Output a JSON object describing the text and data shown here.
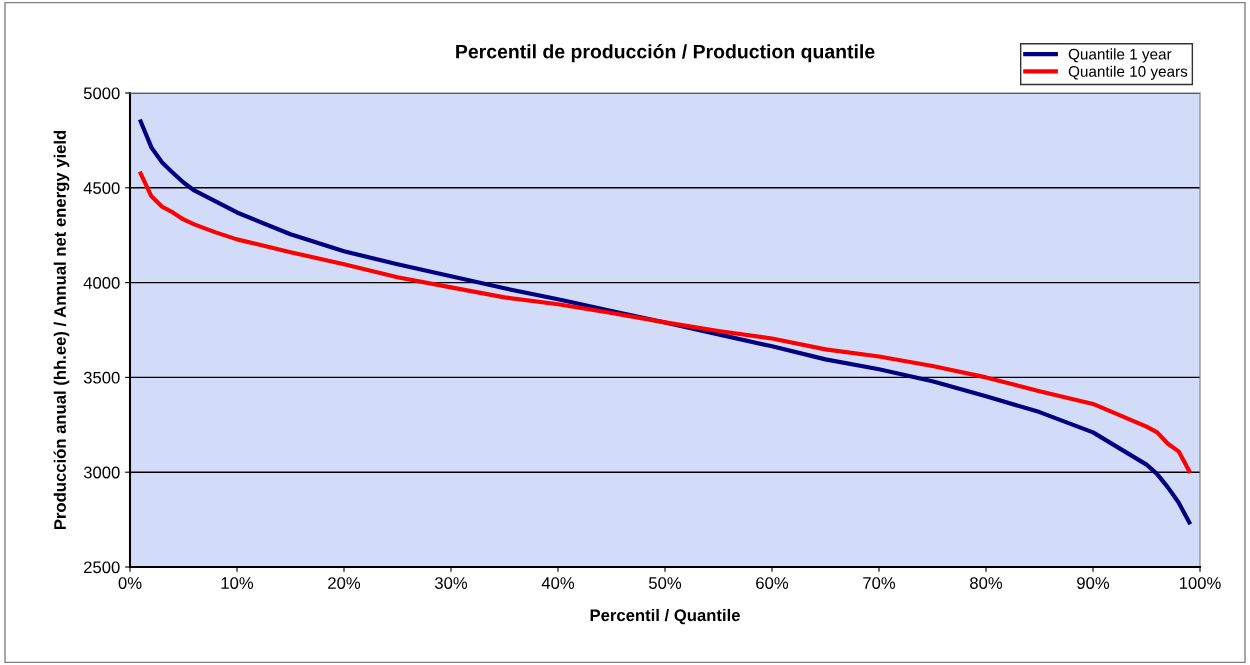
{
  "chart_data": {
    "type": "line",
    "title": "Percentil de producción / Production quantile",
    "xlabel": "Percentil / Quantile",
    "ylabel": "Producción anual (hh.ee) / Annual net energy yield",
    "x": [
      1,
      2,
      3,
      4,
      5,
      6,
      8,
      10,
      15,
      20,
      25,
      30,
      35,
      40,
      45,
      50,
      55,
      60,
      65,
      70,
      75,
      80,
      85,
      90,
      95,
      96,
      97,
      98,
      99
    ],
    "series": [
      {
        "name": "Quantile 1 year",
        "color": "#000080",
        "values": [
          4850,
          4713,
          4634,
          4580,
          4528,
          4486,
          4428,
          4370,
          4255,
          4165,
          4097,
          4033,
          3970,
          3912,
          3850,
          3790,
          3727,
          3664,
          3595,
          3543,
          3480,
          3400,
          3317,
          3210,
          3040,
          2990,
          2920,
          2840,
          2735
        ]
      },
      {
        "name": "Quantile 10 years",
        "color": "#ff0000",
        "values": [
          4575,
          4455,
          4400,
          4370,
          4333,
          4307,
          4265,
          4228,
          4160,
          4097,
          4028,
          3975,
          3922,
          3886,
          3840,
          3790,
          3745,
          3705,
          3648,
          3610,
          3560,
          3500,
          3427,
          3360,
          3240,
          3210,
          3150,
          3110,
          3005
        ]
      }
    ],
    "xlim": [
      0,
      100
    ],
    "xticks": [
      {
        "value": 0,
        "label": "0%"
      },
      {
        "value": 10,
        "label": "10%"
      },
      {
        "value": 20,
        "label": "20%"
      },
      {
        "value": 30,
        "label": "30%"
      },
      {
        "value": 40,
        "label": "40%"
      },
      {
        "value": 50,
        "label": "50%"
      },
      {
        "value": 60,
        "label": "60%"
      },
      {
        "value": 70,
        "label": "70%"
      },
      {
        "value": 80,
        "label": "80%"
      },
      {
        "value": 90,
        "label": "90%"
      },
      {
        "value": 100,
        "label": "100%"
      }
    ],
    "ylim": [
      2500,
      5000
    ],
    "yticks": [
      2500,
      3000,
      3500,
      4000,
      4500,
      5000
    ],
    "grid": "y",
    "legend": "top right",
    "marker": "none",
    "line_style": "solid"
  }
}
